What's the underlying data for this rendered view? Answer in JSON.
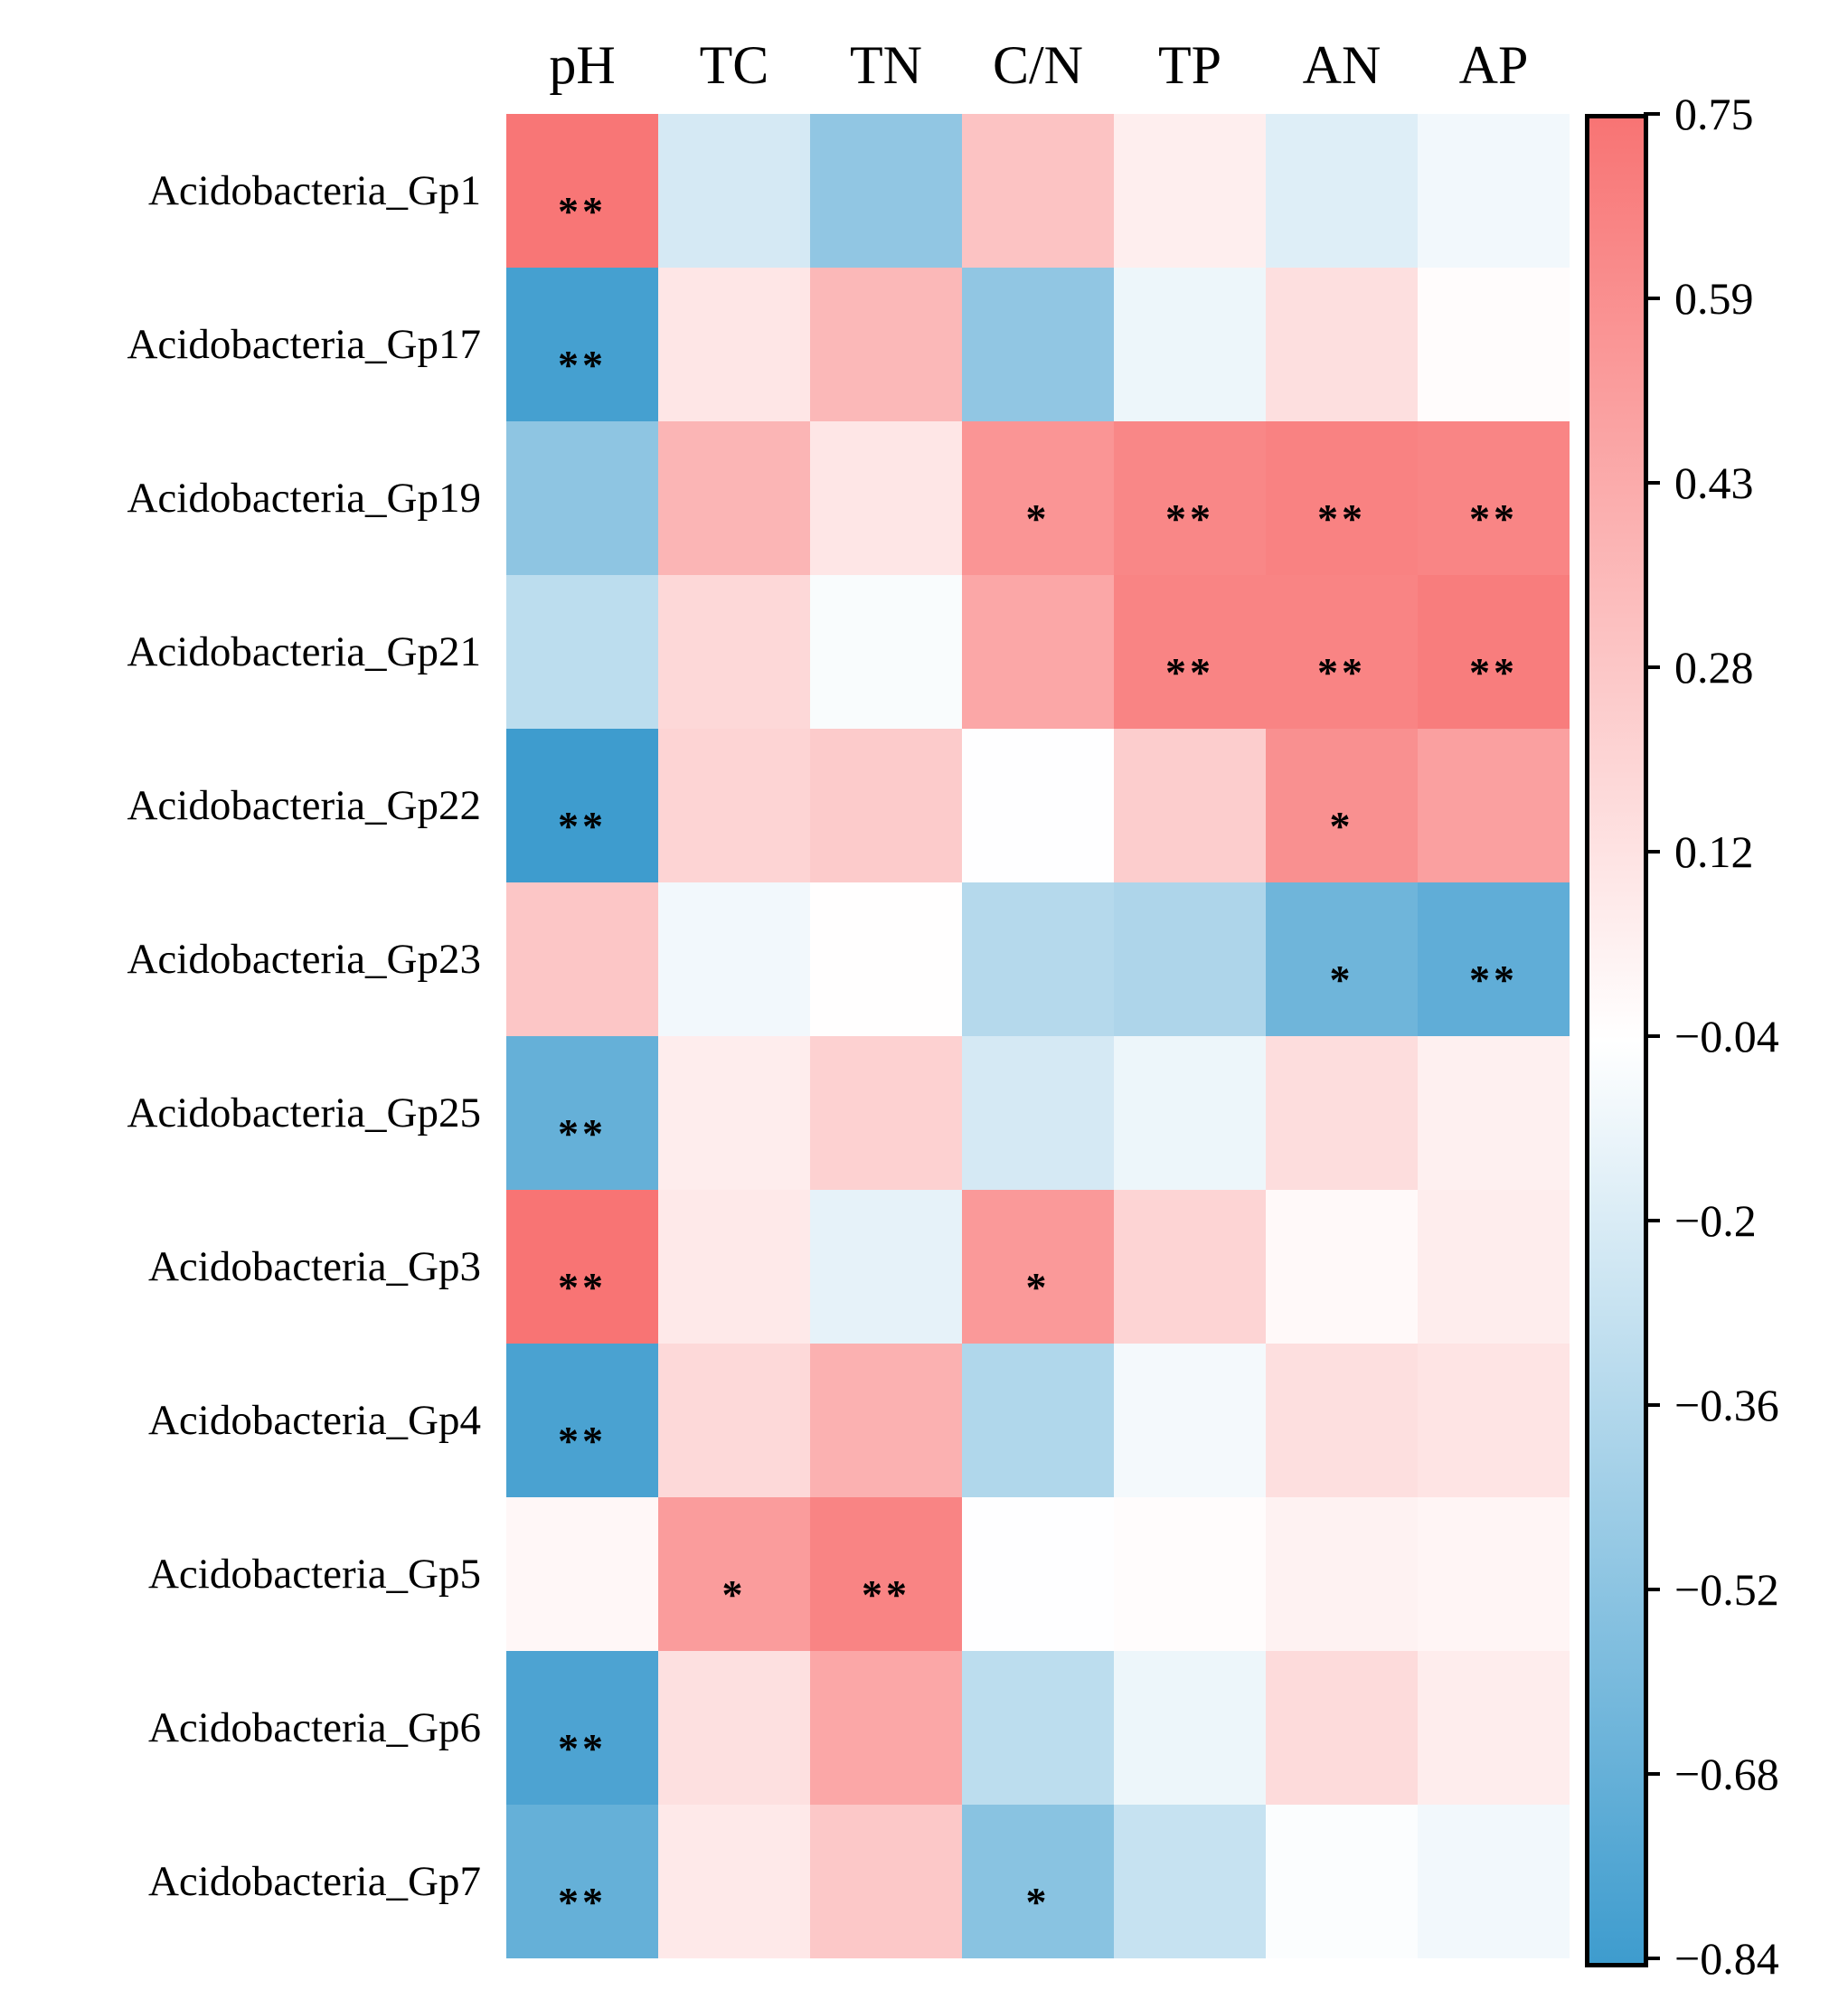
{
  "figure_title": "",
  "columns": [
    "pH",
    "TC",
    "TN",
    "C/N",
    "TP",
    "AN",
    "AP"
  ],
  "colorbar": {
    "tick_labels": [
      "0.75",
      "0.59",
      "0.43",
      "0.28",
      "0.12",
      "−0.04",
      "−0.2",
      "−0.36",
      "−0.52",
      "−0.68",
      "−0.84"
    ],
    "vmax": 0.75,
    "vmid": -0.045,
    "vmin": -0.84,
    "positive_end_color": "#F87474",
    "midpoint_color": "#FFFFFF",
    "negative_end_color": "#3E9CCE",
    "border_color": "#000000"
  },
  "chart_data": {
    "type": "heatmap",
    "title": "",
    "xlabel": "",
    "ylabel": "",
    "x": [
      "pH",
      "TC",
      "TN",
      "C/N",
      "TP",
      "AN",
      "AP"
    ],
    "y": [
      "Acidobacteria_Gp1",
      "Acidobacteria_Gp17",
      "Acidobacteria_Gp19",
      "Acidobacteria_Gp21",
      "Acidobacteria_Gp22",
      "Acidobacteria_Gp23",
      "Acidobacteria_Gp25",
      "Acidobacteria_Gp3",
      "Acidobacteria_Gp4",
      "Acidobacteria_Gp5",
      "Acidobacteria_Gp6",
      "Acidobacteria_Gp7"
    ],
    "values": [
      [
        0.74,
        -0.22,
        -0.5,
        0.3,
        0.05,
        -0.18,
        -0.1
      ],
      [
        -0.81,
        0.1,
        0.36,
        -0.5,
        -0.12,
        0.14,
        -0.03
      ],
      [
        -0.51,
        0.38,
        0.1,
        0.56,
        0.64,
        0.67,
        0.65
      ],
      [
        -0.32,
        0.18,
        -0.07,
        0.46,
        0.66,
        0.66,
        0.7
      ],
      [
        -0.84,
        0.2,
        0.25,
        -0.05,
        0.24,
        0.59,
        0.5
      ],
      [
        0.28,
        -0.1,
        -0.04,
        -0.35,
        -0.38,
        -0.64,
        -0.7
      ],
      [
        -0.68,
        0.06,
        0.22,
        -0.22,
        -0.12,
        0.15,
        0.04
      ],
      [
        0.75,
        0.08,
        -0.15,
        0.54,
        0.2,
        -0.01,
        0.06
      ],
      [
        -0.79,
        0.17,
        0.4,
        -0.37,
        -0.09,
        0.14,
        0.11
      ],
      [
        0.0,
        0.52,
        0.66,
        -0.05,
        -0.03,
        0.03,
        0.01
      ],
      [
        -0.78,
        0.13,
        0.46,
        -0.32,
        -0.12,
        0.16,
        0.06
      ],
      [
        -0.68,
        0.08,
        0.27,
        -0.53,
        -0.28,
        -0.06,
        -0.1
      ]
    ],
    "significance": [
      [
        "**",
        "",
        "",
        "",
        "",
        "",
        ""
      ],
      [
        "**",
        "",
        "",
        "",
        "",
        "",
        ""
      ],
      [
        "",
        "",
        "",
        "*",
        "**",
        "**",
        "**"
      ],
      [
        "",
        "",
        "",
        "",
        "**",
        "**",
        "**"
      ],
      [
        "**",
        "",
        "",
        "",
        "",
        "*",
        ""
      ],
      [
        "",
        "",
        "",
        "",
        "",
        "*",
        "**"
      ],
      [
        "**",
        "",
        "",
        "",
        "",
        "",
        ""
      ],
      [
        "**",
        "",
        "",
        "*",
        "",
        "",
        ""
      ],
      [
        "**",
        "",
        "",
        "",
        "",
        "",
        ""
      ],
      [
        "",
        "*",
        "**",
        "",
        "",
        "",
        ""
      ],
      [
        "**",
        "",
        "",
        "",
        "",
        "",
        ""
      ],
      [
        "**",
        "",
        "",
        "*",
        "",
        "",
        ""
      ]
    ],
    "colorbar_ticks": [
      0.75,
      0.59,
      0.43,
      0.28,
      0.12,
      -0.04,
      -0.2,
      -0.36,
      -0.52,
      -0.68,
      -0.84
    ],
    "colorscale": "red-white-blue diverging",
    "legend_position": "right",
    "grid": false
  }
}
